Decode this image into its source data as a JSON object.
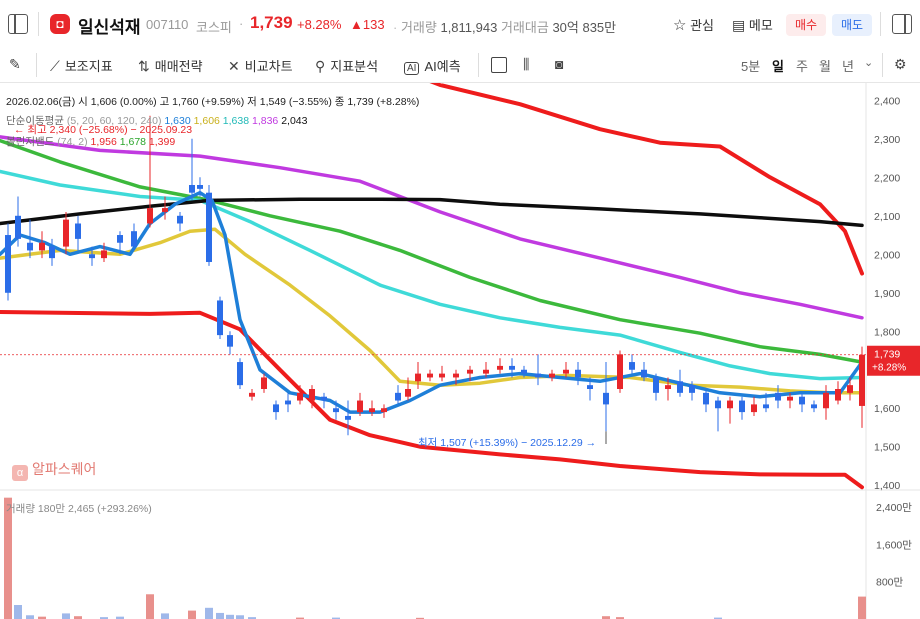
{
  "header": {
    "stock_name": "일신석재",
    "stock_code": "007110",
    "market": "코스피",
    "price": "1,739",
    "change_pct": "+8.28%",
    "change_amt": "▲133",
    "volume_label": "거래량",
    "volume": "1,811,943",
    "amount_label": "거래대금",
    "amount": "30억 835만",
    "favorite_label": "관심",
    "memo_label": "메모",
    "buy_label": "매수",
    "sell_label": "매도"
  },
  "toolbar": {
    "indicators": "보조지표",
    "strategy": "매매전략",
    "compare": "비교차트",
    "pattern": "지표분석",
    "ai": "AI예측",
    "timeframes": [
      "5분",
      "일",
      "주",
      "월",
      "년"
    ],
    "active_timeframe": "일"
  },
  "info": {
    "ohlc": "2026.02.06(금)  시 1,606 (0.00%)  고 1,760 (+9.59%)  저 1,549 (−3.55%)  종 1,739 (+8.28%)",
    "ma_label": "단순이동평균",
    "ma_params": "(5, 20, 60, 120, 240)",
    "ma_values": [
      "1,630",
      "1,606",
      "1,638",
      "1,836",
      "2,043"
    ],
    "bb_label": "볼린저밴드",
    "bb_params": "(74, 2)",
    "bb_values": [
      "1,956",
      "1,678",
      "1,399"
    ],
    "high_annotation": "← 최고 2,340 (−25.68%) − 2025.09.23",
    "low_annotation": "최저 1,507 (+15.39%) − 2025.12.29 →",
    "volume_line": "거래량  180만  2,465 (+293.26%)"
  },
  "watermark": "알파스퀘어",
  "colors": {
    "up": "#e8262a",
    "down": "#2b6de8",
    "ma5": "#1e7fd8",
    "ma20": "#e1c83a",
    "ma60": "#3fdad8",
    "ma120": "#c03ae0",
    "ma240": "#0d0d0d",
    "bb_upper": "#ee1c1c",
    "bb_mid": "#3cb93c",
    "bb_lower": "#ee1c1c"
  },
  "chart_data": {
    "type": "candlestick",
    "price_axis": [
      "2,400",
      "2,300",
      "2,200",
      "2,100",
      "2,000",
      "1,900",
      "1,800",
      "1,700",
      "1,600",
      "1,500",
      "1,400"
    ],
    "price_range": [
      1385,
      2445
    ],
    "last_price_tag": [
      "1,739",
      "+8.28%"
    ],
    "volume_axis": [
      "2,400만",
      "1,600만",
      "800만"
    ],
    "volume_range": [
      0,
      2700
    ]
  }
}
